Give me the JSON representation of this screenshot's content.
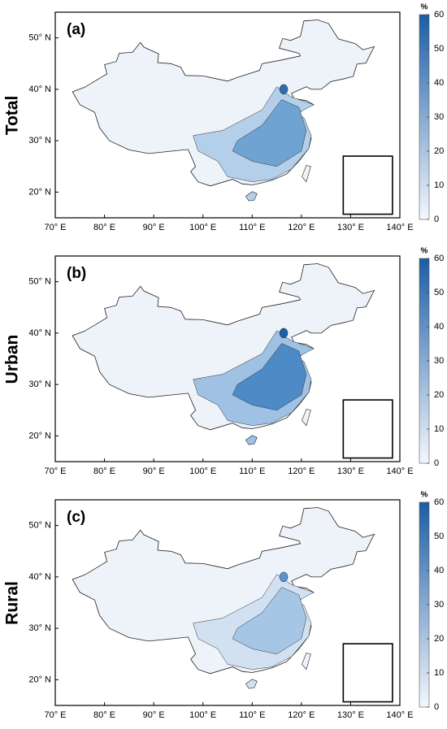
{
  "panels": [
    {
      "letter": "(a)",
      "row_label": "Total"
    },
    {
      "letter": "(b)",
      "row_label": "Urban"
    },
    {
      "letter": "(c)",
      "row_label": "Rural"
    }
  ],
  "map": {
    "xlim": [
      70,
      140
    ],
    "ylim": [
      15,
      55
    ],
    "xticks": [
      {
        "value": 70,
        "label": "70° E"
      },
      {
        "value": 80,
        "label": "80° E"
      },
      {
        "value": 90,
        "label": "90° E"
      },
      {
        "value": 100,
        "label": "100° E"
      },
      {
        "value": 110,
        "label": "110° E"
      },
      {
        "value": 120,
        "label": "120° E"
      },
      {
        "value": 130,
        "label": "130° E"
      },
      {
        "value": 140,
        "label": "140° E"
      }
    ],
    "yticks": [
      {
        "value": 20,
        "label": "20° N"
      },
      {
        "value": 30,
        "label": "30° N"
      },
      {
        "value": 40,
        "label": "40° N"
      },
      {
        "value": 50,
        "label": "50° N"
      }
    ]
  },
  "colorbar": {
    "label": "%",
    "lim": [
      0,
      60
    ],
    "ticks": [
      0,
      10,
      20,
      30,
      40,
      50,
      60
    ],
    "colors": [
      "#f3f7fc",
      "#1c5da6"
    ]
  }
}
